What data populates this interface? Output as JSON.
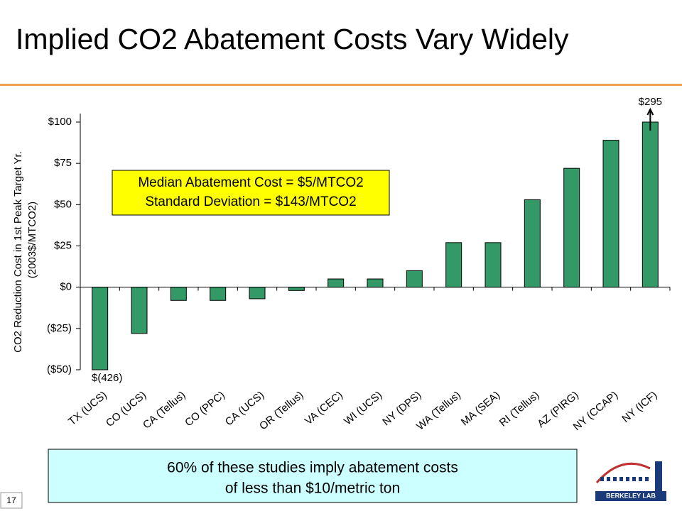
{
  "header": {
    "title": "Implied CO2 Abatement Costs Vary Widely"
  },
  "chart_data": {
    "type": "bar",
    "ylabel": [
      "CO2 Reduction Cost in 1st Peak Target Yr.",
      "(2003$/MTCO2)"
    ],
    "categories": [
      "TX (UCS)",
      "CO (UCS)",
      "CA (Tellus)",
      "CO (PPC)",
      "CA (UCS)",
      "OR (Tellus)",
      "VA (CEC)",
      "WI (UCS)",
      "NY (DPS)",
      "WA (Tellus)",
      "MA (SEA)",
      "RI (Tellus)",
      "AZ (PIRG)",
      "NY (CCAP)",
      "NY (ICF)"
    ],
    "values": [
      -426,
      -28,
      -8,
      -8,
      -7,
      -2,
      5,
      5,
      10,
      27,
      27,
      53,
      72,
      89,
      295
    ],
    "value_labels": [
      "$(426)",
      null,
      null,
      null,
      null,
      null,
      null,
      null,
      null,
      null,
      null,
      null,
      null,
      null,
      "$295"
    ],
    "color": "#339966",
    "ylim": [
      -50,
      100
    ],
    "yticks": [
      {
        "value": -50,
        "label": "($50)"
      },
      {
        "value": -25,
        "label": "($25)"
      },
      {
        "value": 0,
        "label": "$0"
      },
      {
        "value": 25,
        "label": "$25"
      },
      {
        "value": 50,
        "label": "$50"
      },
      {
        "value": 75,
        "label": "$75"
      },
      {
        "value": 100,
        "label": "$100"
      }
    ],
    "annotation": [
      "Median Abatement Cost =  $5/MTCO2",
      "Standard Deviation = $143/MTCO2"
    ]
  },
  "footer": {
    "note": [
      "60% of these studies imply abatement costs",
      "of less than $10/metric ton"
    ],
    "page_number": "17",
    "logo_text": "BERKELEY LAB"
  }
}
